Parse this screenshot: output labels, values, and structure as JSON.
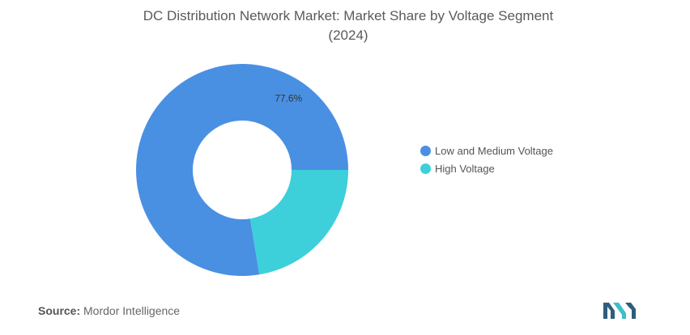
{
  "title_line1": "DC Distribution Network Market: Market Share by Voltage Segment",
  "title_line2": "(2024)",
  "source_label": "Source:",
  "source_name": "Mordor Intelligence",
  "chart_data": {
    "type": "pie",
    "variant": "donut",
    "categories": [
      "Low and Medium Voltage",
      "High Voltage"
    ],
    "values": [
      77.6,
      22.4
    ],
    "colors": [
      "#4a90e2",
      "#3dd0db"
    ],
    "data_labels": [
      "77.6%",
      ""
    ],
    "legend": "right"
  },
  "logo": {
    "icon": "mordor-intelligence-logo",
    "colors": [
      "#2f5d7c",
      "#3dbfc9"
    ]
  }
}
